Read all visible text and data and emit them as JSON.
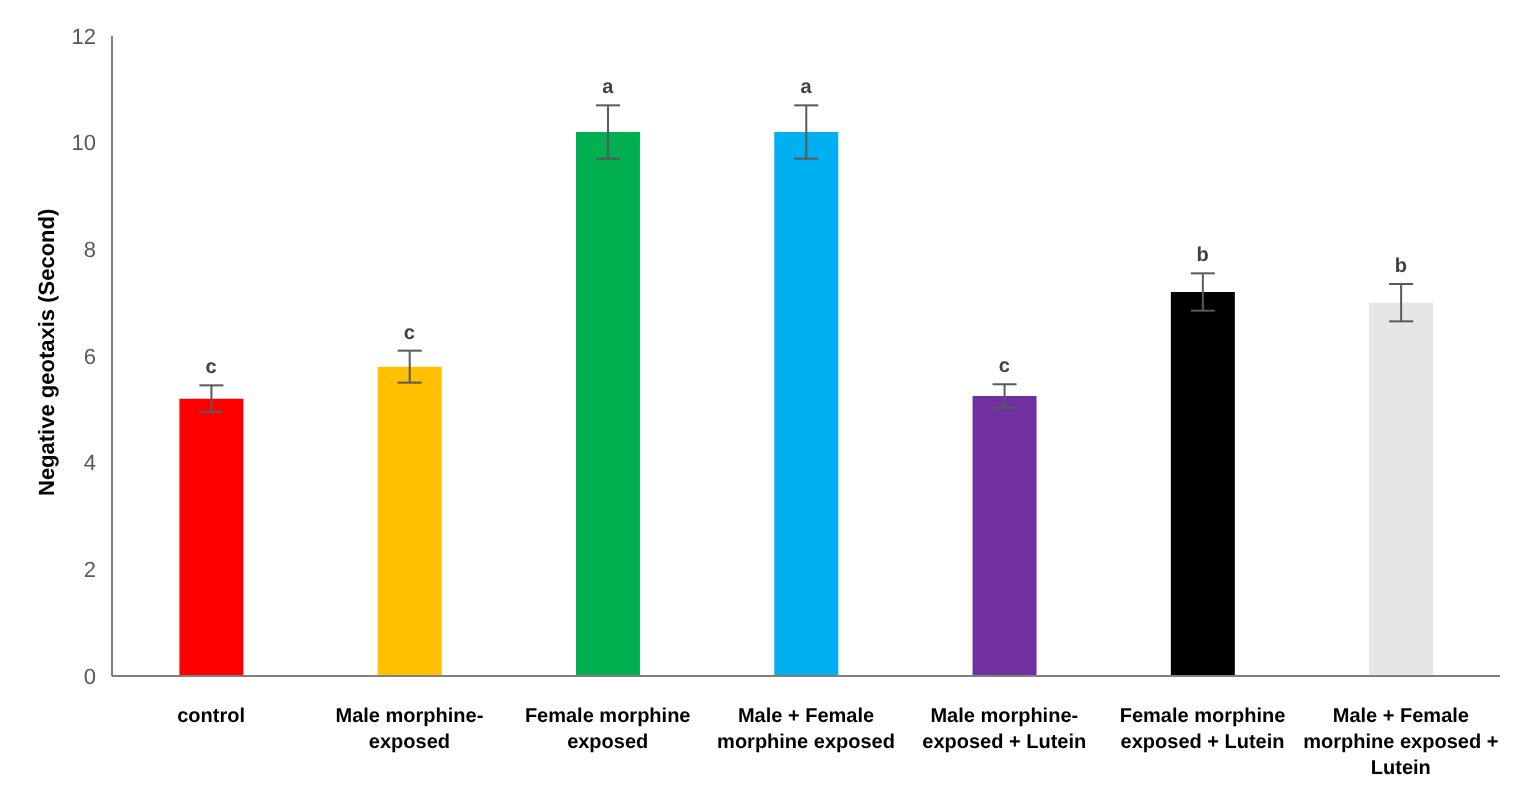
{
  "chart_data": {
    "type": "bar",
    "ylabel": "Negative geotaxis (Second)",
    "categories": [
      "control",
      "Male morphine-exposed",
      "Female morphine exposed",
      "Male + Female morphine exposed",
      "Male morphine-exposed + Lutein",
      "Female morphine exposed + Lutein",
      "Male + Female morphine exposed + Lutein"
    ],
    "values": [
      5.2,
      5.8,
      10.2,
      10.2,
      5.25,
      7.2,
      7.0
    ],
    "colors": [
      "#ff0000",
      "#ffc000",
      "#00b050",
      "#00b0f0",
      "#7030a0",
      "#000000",
      "#e7e6e6"
    ],
    "errors": [
      0.25,
      0.3,
      0.5,
      0.5,
      0.22,
      0.35,
      0.35
    ],
    "ylim": [
      0,
      12
    ],
    "yticks": [
      0,
      2,
      4,
      6,
      8,
      10,
      12
    ],
    "grid": false,
    "legend": false,
    "annotations": [
      "c",
      "c",
      "a",
      "a",
      "c",
      "b",
      "b"
    ]
  }
}
